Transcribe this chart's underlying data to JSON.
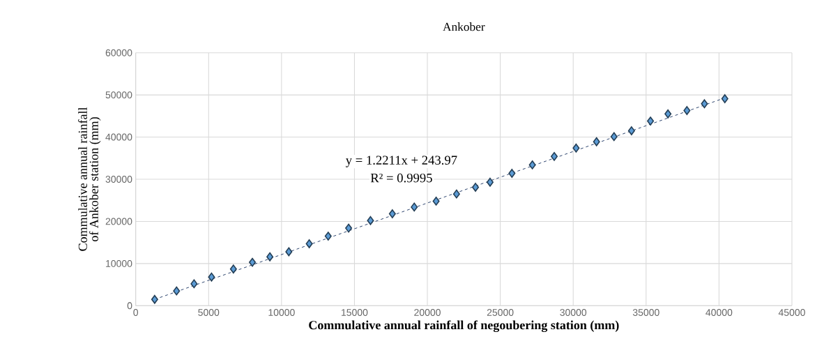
{
  "chart_data": {
    "type": "scatter",
    "title": "Ankober",
    "xlabel": "Commulative annual rainfall  of negoubering station (mm)",
    "ylabel": "Commulative annual rainfall  of Ankober station (mm)",
    "annotations": [
      "y = 1.2211x  + 243.97",
      "R² = 0.9995"
    ],
    "xlim": [
      0,
      45000
    ],
    "xticks": [
      0,
      5000,
      10000,
      15000,
      20000,
      25000,
      30000,
      35000,
      40000,
      45000
    ],
    "ylim": [
      0,
      60000
    ],
    "yticks": [
      0,
      10000,
      20000,
      30000,
      40000,
      50000,
      60000
    ],
    "grid": true,
    "series": [
      {
        "color": "#5b9bd5",
        "marker": "diamond",
        "x": [
          1300,
          2800,
          4000,
          5200,
          6700,
          8000,
          9200,
          10500,
          11900,
          13200,
          14600,
          16100,
          17600,
          19100,
          20600,
          22000,
          23300,
          24300,
          25800,
          27200,
          28700,
          30200,
          31600,
          32800,
          34000,
          35300,
          36500,
          37800,
          39000,
          40400
        ],
        "values": [
          1500,
          3500,
          5200,
          6800,
          8700,
          10300,
          11600,
          12800,
          14700,
          16500,
          18400,
          20200,
          21800,
          23400,
          24800,
          26500,
          28100,
          29300,
          31400,
          33400,
          35400,
          37400,
          38900,
          40100,
          41500,
          43800,
          45500,
          46300,
          47900,
          49100
        ]
      },
      {
        "type": "line",
        "color": "#1f3864",
        "line_style": "dashed",
        "marker": "none",
        "x": [
          1300,
          40400
        ],
        "values": [
          1500,
          49300
        ]
      }
    ]
  }
}
